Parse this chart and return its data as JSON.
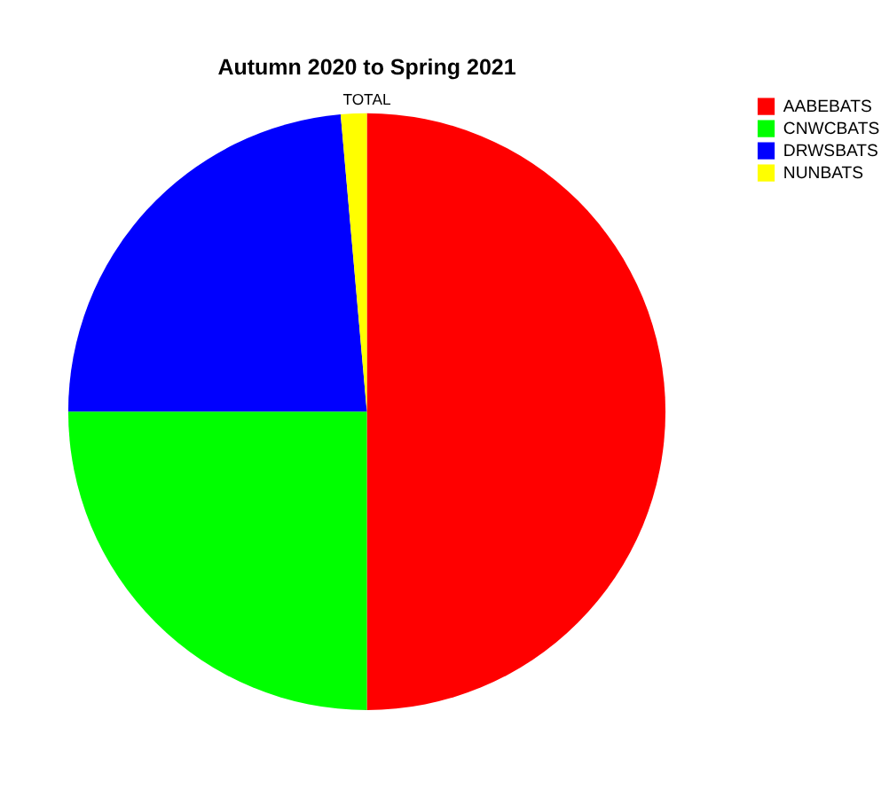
{
  "chart_data": {
    "type": "pie",
    "title": "Autumn 2020 to Spring 2021",
    "categories": [
      "AABEBATS",
      "CNWCBATS",
      "DRWSBATS",
      "NUNBATS"
    ],
    "values": [
      50,
      25,
      23.6,
      1.4
    ],
    "colors": [
      "#ff0000",
      "#00ff00",
      "#0000ff",
      "#ffff00"
    ],
    "annotations": [
      "TOTAL"
    ],
    "legend": "right"
  }
}
